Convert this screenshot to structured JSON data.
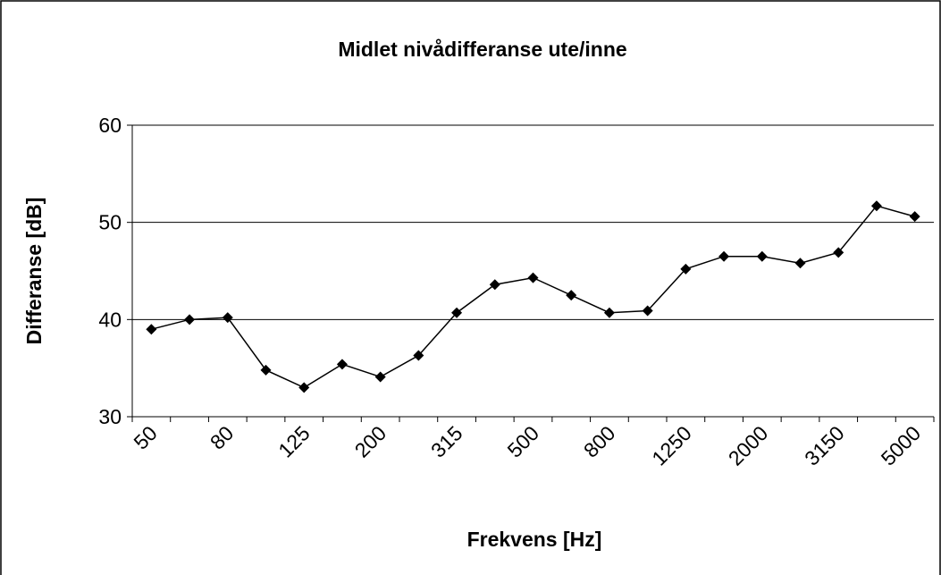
{
  "chart_data": {
    "type": "line",
    "title": "Midlet nivådifferanse ute/inne",
    "x_label": "Frekvens [Hz]",
    "y_label": "Differanse [dB]",
    "categories": [
      "50",
      null,
      "80",
      null,
      "125",
      null,
      "200",
      null,
      "315",
      null,
      "500",
      null,
      "800",
      null,
      "1250",
      null,
      "2000",
      null,
      "3150",
      null,
      "5000"
    ],
    "series": [
      {
        "name": "Differanse",
        "color": "#000000",
        "values": [
          39.0,
          40.0,
          40.2,
          34.8,
          33.0,
          35.4,
          34.1,
          36.3,
          40.7,
          43.6,
          44.3,
          42.5,
          40.7,
          40.9,
          45.2,
          46.5,
          46.5,
          45.8,
          46.9,
          51.7,
          50.6
        ]
      }
    ],
    "ylim": [
      30,
      60
    ],
    "yticks": [
      30,
      40,
      50,
      60
    ],
    "grid": true
  }
}
